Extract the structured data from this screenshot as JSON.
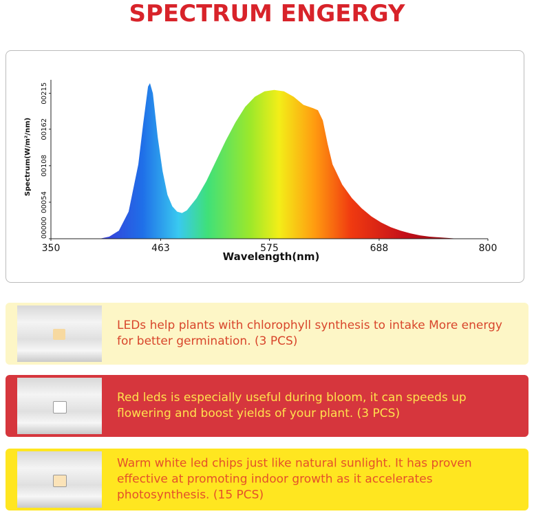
{
  "header": {
    "title": "SPECTRUM ENGERGY"
  },
  "chart_data": {
    "type": "area",
    "x_label": "Wavelength(nm)",
    "y_label": "Spectrum(W/m²/nm)",
    "x": [
      400,
      410,
      420,
      430,
      440,
      445,
      450,
      452,
      455,
      460,
      465,
      470,
      475,
      480,
      485,
      490,
      500,
      510,
      520,
      530,
      540,
      550,
      560,
      570,
      580,
      590,
      600,
      610,
      620,
      625,
      630,
      635,
      640,
      650,
      660,
      670,
      680,
      690,
      700,
      710,
      720,
      730,
      740,
      750,
      760,
      770
    ],
    "values": [
      0,
      3,
      12,
      40,
      110,
      170,
      225,
      230,
      215,
      150,
      100,
      65,
      48,
      40,
      38,
      42,
      60,
      85,
      115,
      145,
      172,
      195,
      210,
      218,
      220,
      218,
      210,
      198,
      193,
      190,
      175,
      140,
      110,
      80,
      60,
      45,
      33,
      24,
      17,
      12,
      8,
      5,
      3,
      2,
      1,
      0
    ],
    "xlim": [
      350,
      800
    ],
    "xticks": [
      350,
      463,
      575,
      688,
      800
    ],
    "ylim": [
      0,
      235
    ],
    "yticks": [
      {
        "value": 0,
        "label": "00000"
      },
      {
        "value": 54,
        "label": "00054"
      },
      {
        "value": 108,
        "label": "00108"
      },
      {
        "value": 162,
        "label": "00162"
      },
      {
        "value": 215,
        "label": "00215"
      }
    ]
  },
  "features": [
    {
      "text": "LEDs help plants with chlorophyll synthesis to intake More energy for better germination. (3 PCS)"
    },
    {
      "text": "Red leds is especially useful during bloom, it can speeds up flowering and boost yields of your plant. (3 PCS)"
    },
    {
      "text": "Warm white led chips just like natural sunlight. It has proven effective at promoting indoor growth as it accelerates photosynthesis. (15 PCS)"
    }
  ]
}
